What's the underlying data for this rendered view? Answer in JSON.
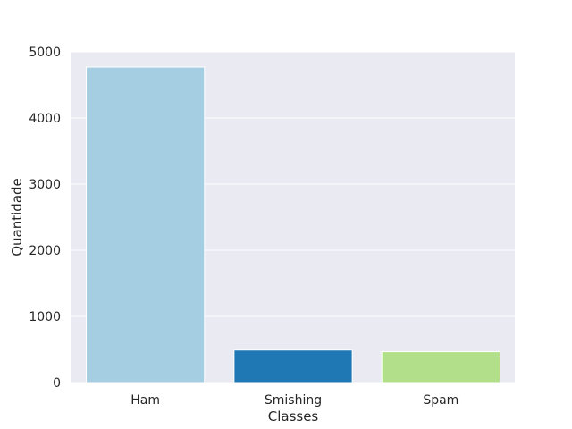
{
  "chart_data": {
    "type": "bar",
    "title": "",
    "xlabel": "Classes",
    "ylabel": "Quantidade",
    "categories": [
      "Ham",
      "Smishing",
      "Spam"
    ],
    "values": [
      4770,
      490,
      465
    ],
    "colors": [
      "#a6cee3",
      "#1f78b4",
      "#b2df8a"
    ],
    "ylim": [
      0,
      5000
    ],
    "yticks": [
      0,
      1000,
      2000,
      3000,
      4000,
      5000
    ],
    "ytick_labels": [
      "0",
      "1000",
      "2000",
      "3000",
      "4000",
      "5000"
    ],
    "grid": true,
    "background": "#eaeaf2",
    "grid_color": "#ffffff"
  }
}
